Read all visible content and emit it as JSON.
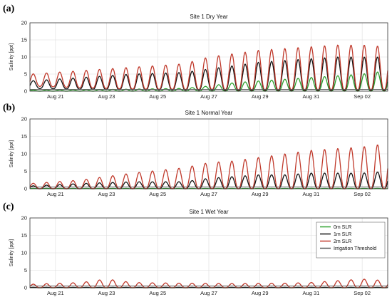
{
  "figure": {
    "panels": [
      {
        "label": "(a)"
      },
      {
        "label": "(b)"
      },
      {
        "label": "(c)"
      }
    ]
  },
  "chart_data": [
    {
      "type": "line",
      "title": "Site 1 Dry Year",
      "xlabel": "",
      "ylabel": "Salinity [ppt]",
      "ylim": [
        0,
        20
      ],
      "yticks": [
        0,
        5,
        10,
        15,
        20
      ],
      "xlim": [
        "Aug 20",
        "Sep 03"
      ],
      "xtick_labels": [
        "Aug 21",
        "Aug 23",
        "Aug 25",
        "Aug 27",
        "Aug 29",
        "Aug 31",
        "Sep 02"
      ],
      "grid": true,
      "legend": "none",
      "series": [
        {
          "color": "#2ca02c",
          "x": [
            "Aug 20",
            "Aug 22",
            "Aug 24",
            "Aug 26",
            "Aug 27",
            "Aug 28",
            "Aug 29",
            "Aug 30",
            "Aug 31",
            "Sep 01",
            "Sep 02",
            "Sep 03"
          ],
          "peak": [
            0.3,
            0.4,
            0.6,
            0.8,
            1.5,
            2.5,
            3.0,
            3.5,
            4.0,
            4.5,
            5.0,
            6.0
          ],
          "trough": [
            0,
            0,
            0,
            0,
            0,
            0,
            0,
            0,
            0,
            0,
            0,
            0
          ]
        },
        {
          "color": "#111111",
          "x": [
            "Aug 20",
            "Aug 22",
            "Aug 24",
            "Aug 26",
            "Aug 27",
            "Aug 28",
            "Aug 29",
            "Aug 30",
            "Aug 31",
            "Sep 01",
            "Sep 02",
            "Sep 03"
          ],
          "peak": [
            3.0,
            4.0,
            5.0,
            5.5,
            6.5,
            7.5,
            8.5,
            9.0,
            9.5,
            10.0,
            10.0,
            10.0
          ],
          "trough": [
            0.8,
            0.6,
            0.4,
            0.3,
            0.3,
            0.2,
            0.2,
            0.2,
            0.2,
            0.2,
            0.2,
            0.2
          ]
        },
        {
          "color": "#c0392b",
          "x": [
            "Aug 20",
            "Aug 22",
            "Aug 24",
            "Aug 26",
            "Aug 27",
            "Aug 28",
            "Aug 29",
            "Aug 30",
            "Aug 31",
            "Sep 01",
            "Sep 02",
            "Sep 03"
          ],
          "peak": [
            5.0,
            6.0,
            7.0,
            8.0,
            10.0,
            11.0,
            12.0,
            12.5,
            13.0,
            13.5,
            13.5,
            13.0
          ],
          "trough": [
            1.5,
            1.0,
            0.6,
            0.5,
            0.5,
            0.4,
            0.4,
            0.4,
            0.4,
            0.4,
            0.4,
            0.4
          ]
        },
        {
          "color": "#555555",
          "y": [
            0.5,
            0.5
          ]
        }
      ]
    },
    {
      "type": "line",
      "title": "Site 1 Normal Year",
      "xlabel": "",
      "ylabel": "Salinity [ppt]",
      "ylim": [
        0,
        20
      ],
      "yticks": [
        0,
        5,
        10,
        15,
        20
      ],
      "xlim": [
        "Aug 20",
        "Sep 03"
      ],
      "xtick_labels": [
        "Aug 21",
        "Aug 23",
        "Aug 25",
        "Aug 27",
        "Aug 29",
        "Aug 31",
        "Sep 02"
      ],
      "grid": true,
      "legend": "none",
      "series": [
        {
          "color": "#2ca02c",
          "x": [
            "Aug 20",
            "Sep 03"
          ],
          "peak": [
            0.1,
            0.1
          ],
          "trough": [
            0,
            0
          ]
        },
        {
          "color": "#111111",
          "x": [
            "Aug 20",
            "Aug 22",
            "Aug 24",
            "Aug 26",
            "Aug 27",
            "Aug 28",
            "Aug 29",
            "Aug 30",
            "Aug 31",
            "Sep 01",
            "Sep 02",
            "Sep 03"
          ],
          "peak": [
            0.8,
            1.5,
            2.0,
            2.0,
            3.0,
            3.5,
            4.0,
            4.0,
            4.5,
            4.5,
            4.5,
            5.0
          ],
          "trough": [
            0,
            0,
            0,
            0,
            0,
            0,
            0,
            0,
            0,
            0,
            0,
            0
          ]
        },
        {
          "color": "#c0392b",
          "x": [
            "Aug 20",
            "Aug 22",
            "Aug 24",
            "Aug 26",
            "Aug 27",
            "Aug 28",
            "Aug 29",
            "Aug 30",
            "Aug 31",
            "Sep 01",
            "Sep 02",
            "Sep 03"
          ],
          "peak": [
            1.5,
            2.5,
            4.5,
            6.0,
            7.5,
            8.0,
            9.0,
            10.0,
            11.0,
            11.5,
            12.0,
            13.0
          ],
          "trough": [
            0,
            0,
            0,
            0,
            0,
            0,
            0,
            0,
            0,
            0,
            0,
            0
          ]
        },
        {
          "color": "#555555",
          "y": [
            0.5,
            0.5
          ]
        }
      ]
    },
    {
      "type": "line",
      "title": "Site 1 Wet Year",
      "xlabel": "",
      "ylabel": "Salinity [ppt]",
      "ylim": [
        0,
        20
      ],
      "yticks": [
        0,
        5,
        10,
        15,
        20
      ],
      "xlim": [
        "Aug 20",
        "Sep 03"
      ],
      "xtick_labels": [
        "Aug 21",
        "Aug 23",
        "Aug 25",
        "Aug 27",
        "Aug 29",
        "Aug 31",
        "Sep 02"
      ],
      "grid": true,
      "legend": "top-right",
      "series": [
        {
          "name": "0m SLR",
          "color": "#2ca02c",
          "x": [
            "Aug 20",
            "Sep 03"
          ],
          "peak": [
            0.05,
            0.05
          ],
          "trough": [
            0,
            0
          ]
        },
        {
          "name": "1m SLR",
          "color": "#111111",
          "x": [
            "Aug 20",
            "Sep 03"
          ],
          "peak": [
            0.1,
            0.1
          ],
          "trough": [
            0,
            0
          ]
        },
        {
          "name": "2m SLR",
          "color": "#c0392b",
          "x": [
            "Aug 20",
            "Aug 22",
            "Aug 23",
            "Aug 24",
            "Aug 26",
            "Aug 28",
            "Aug 30",
            "Aug 31",
            "Sep 01",
            "Sep 02",
            "Sep 03"
          ],
          "peak": [
            1.0,
            1.5,
            2.5,
            1.5,
            1.3,
            1.2,
            1.3,
            1.5,
            2.0,
            2.5,
            2.0
          ],
          "trough": [
            0,
            0,
            0,
            0,
            0,
            0,
            0,
            0,
            0,
            0,
            0
          ]
        },
        {
          "name": "Irrigation Threshold",
          "color": "#555555",
          "y": [
            0.5,
            0.5
          ]
        }
      ]
    }
  ]
}
